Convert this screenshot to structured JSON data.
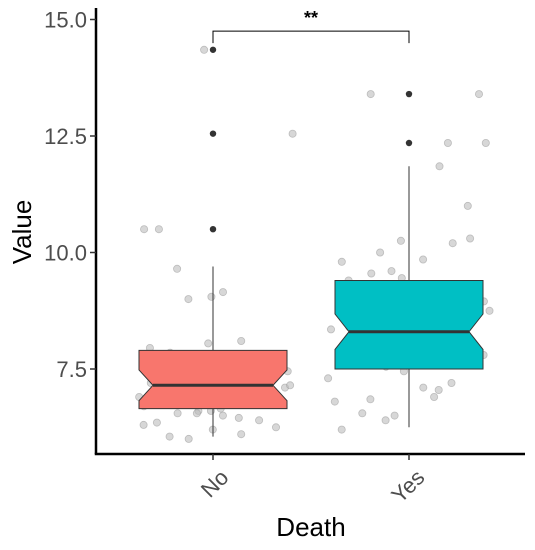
{
  "chart_data": {
    "type": "boxplot",
    "xlabel": "Death",
    "ylabel": "Value",
    "ylim": [
      5.8,
      15.2
    ],
    "yticks": [
      7.5,
      10.0,
      12.5,
      15.0
    ],
    "ytick_labels": [
      "7.5",
      "10.0",
      "12.5",
      "15.0"
    ],
    "categories": [
      "No",
      "Yes"
    ],
    "grid": false,
    "legend": "none",
    "notched": true,
    "colors": {
      "No": "#F8766D",
      "Yes": "#00BFC4"
    },
    "boxes": [
      {
        "category": "No",
        "whisker_low": 6.05,
        "q1": 6.65,
        "median": 7.15,
        "q3": 7.9,
        "whisker_high": 9.7,
        "notch_low": 6.82,
        "notch_high": 7.48,
        "outliers": [
          10.5,
          12.55,
          14.35
        ]
      },
      {
        "category": "Yes",
        "whisker_low": 6.25,
        "q1": 7.5,
        "median": 8.3,
        "q3": 9.4,
        "whisker_high": 11.85,
        "notch_low": 7.92,
        "notch_high": 8.68,
        "outliers": [
          12.35,
          13.4
        ]
      }
    ],
    "points": [
      {
        "group": "No",
        "values": [
          9.05,
          9.15,
          7.95,
          7.5,
          7.35,
          7.2,
          6.7,
          6.95,
          7.0,
          6.6,
          6.55,
          6.4,
          6.45,
          6.3,
          6.2,
          6.05,
          6.1,
          6.35,
          6.5,
          6.6,
          6.75,
          6.9,
          7.1,
          7.15,
          7.2,
          7.3,
          7.45,
          7.6,
          7.75,
          7.8,
          8.1,
          9.65,
          10.5,
          12.55,
          14.35,
          7.05,
          6.65,
          7.25,
          6.85,
          7.4,
          6.0,
          9.0,
          10.5,
          7.5,
          7.85,
          6.25,
          8.05,
          6.95,
          7.1,
          6.55
        ]
      },
      {
        "group": "Yes",
        "values": [
          7.2,
          6.9,
          8.4,
          8.7,
          10.25,
          9.8,
          6.8,
          6.5,
          7.05,
          7.6,
          7.8,
          7.9,
          8.1,
          8.25,
          8.5,
          8.6,
          8.8,
          8.9,
          9.0,
          9.1,
          9.25,
          9.4,
          9.55,
          10.2,
          11.0,
          12.35,
          13.4,
          7.7,
          8.0,
          9.3,
          7.75,
          8.35,
          10.0,
          6.4,
          6.55,
          9.6,
          11.85,
          12.35,
          13.4,
          8.95,
          7.3,
          7.55,
          9.85,
          8.2,
          6.2,
          8.75,
          9.45,
          10.3,
          7.1,
          7.45,
          7.95,
          8.65,
          9.15,
          6.85
        ]
      }
    ],
    "significance": {
      "groups": [
        "No",
        "Yes"
      ],
      "label": "**",
      "y": 14.75
    }
  }
}
